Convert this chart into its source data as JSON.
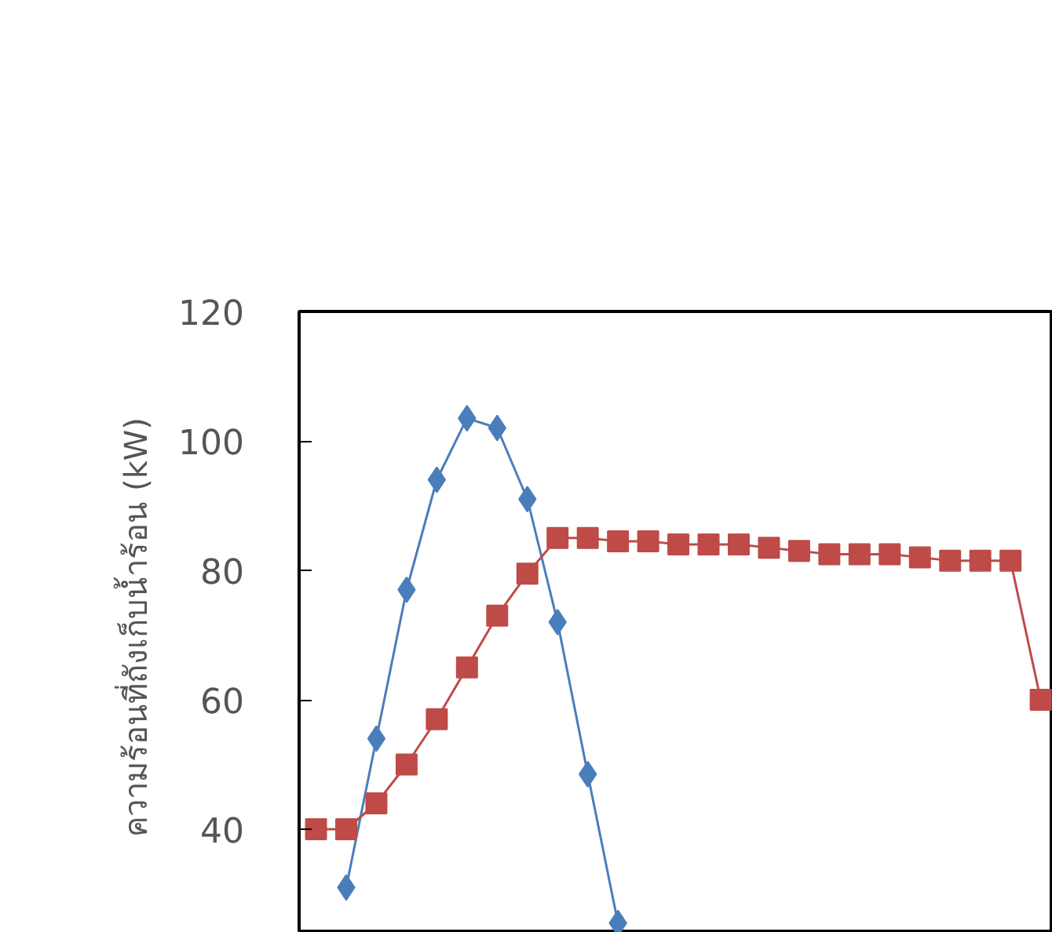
{
  "chart_data": {
    "type": "line",
    "ylabel": "ความร้อนที่ถังเก็บน้ำร้อน  (kW)",
    "categories": [
      null,
      null,
      null,
      null,
      null,
      null,
      null,
      null,
      null,
      null,
      null,
      null,
      null,
      null,
      null,
      null,
      null,
      null,
      null,
      null,
      null,
      null,
      null,
      null,
      null
    ],
    "ylim": [
      24,
      120
    ],
    "yticks": [
      40,
      60,
      80,
      100,
      120
    ],
    "grid": false,
    "tick_labels": "y",
    "line_style": "solid",
    "series": [
      {
        "color": "#4a7ebb",
        "marker": "diamond",
        "values": [
          null,
          31,
          54,
          77,
          94,
          103.5,
          102,
          91,
          72,
          48.5,
          25.5,
          null,
          null,
          null,
          null,
          null,
          null,
          null,
          null,
          null,
          null,
          null,
          null,
          null,
          null
        ]
      },
      {
        "color": "#be4b48",
        "marker": "square",
        "values": [
          40,
          40,
          44,
          50,
          57,
          65,
          73,
          79.5,
          85,
          85,
          84.5,
          84.5,
          84,
          84,
          84,
          83.5,
          83,
          82.5,
          82.5,
          82.5,
          82,
          81.5,
          81.5,
          81.5,
          60
        ]
      }
    ]
  }
}
